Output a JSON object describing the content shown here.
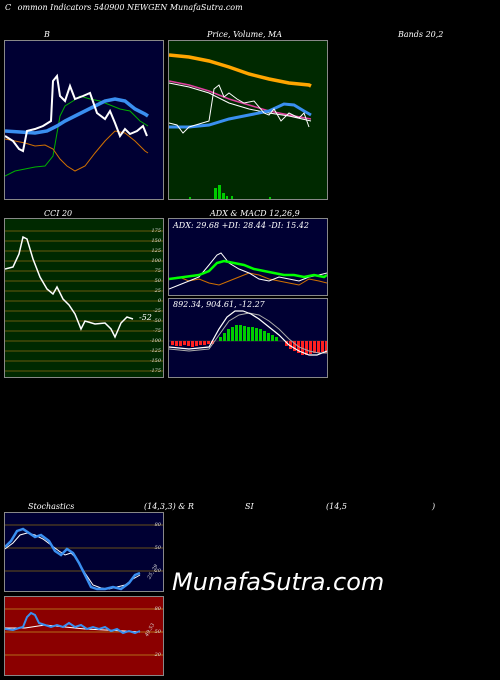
{
  "header": {
    "title_left": "C",
    "title_main": "ommon  Indicators 540900  NEWGEN  MunafaSutra.com"
  },
  "panels": {
    "bands": {
      "title_left": "B",
      "title_right": "Bands 20,2"
    },
    "price": {
      "title": "Price,  Volume,  MA"
    },
    "cci": {
      "title": "CCI 20",
      "value_label": "-52",
      "ticks": [
        "175",
        "150",
        "125",
        "100",
        "75",
        "50",
        "25",
        "0",
        "-25",
        "-50",
        "-75",
        "-100",
        "-125",
        "-150",
        "-175"
      ]
    },
    "adx": {
      "title": "ADX  & MACD 12,26,9",
      "readout": "ADX: 29.68  +DI: 28.44  -DI: 15.42"
    },
    "macd": {
      "readout": "892.34,  904.61,  -12.27"
    },
    "stoch": {
      "title_left": "Stochastics",
      "title_mid": "(14,3,3) & R",
      "title_si": "SI",
      "title_params": "(14,5",
      "title_close": ")",
      "ticks": [
        "80",
        "50",
        "20"
      ],
      "value_label": "25, 29"
    },
    "rsi": {
      "ticks": [
        "80",
        "50",
        "20"
      ],
      "value_label": "49.53"
    }
  },
  "watermark": "MunafaSutra.com",
  "colors": {
    "panel_navy": "#000033",
    "panel_green": "#002900",
    "panel_red": "#8b0000",
    "blue_line": "#3a8ff0",
    "orange_line": "#ffa500",
    "green_line": "#00ff00"
  }
}
